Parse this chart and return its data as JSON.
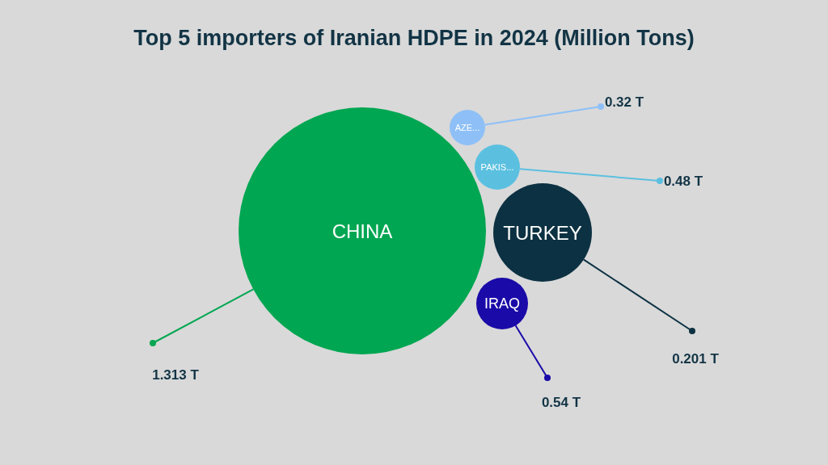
{
  "chart_data": {
    "type": "other",
    "title": "Top 5 importers of Iranian HDPE in 2024 (Million Tons)",
    "categories": [
      "CHINA",
      "AZE...",
      "PAKIS...",
      "TURKEY",
      "IRAQ"
    ],
    "values": [
      1.313,
      0.32,
      0.48,
      0.201,
      0.54
    ],
    "value_labels": [
      "1.313 T",
      "0.32 T",
      "0.48 T",
      "0.201 T",
      "0.54 T"
    ],
    "colors": [
      "#00a651",
      "#8ec0f7",
      "#5bc0e0",
      "#0c3142",
      "#1a0aa8"
    ]
  }
}
